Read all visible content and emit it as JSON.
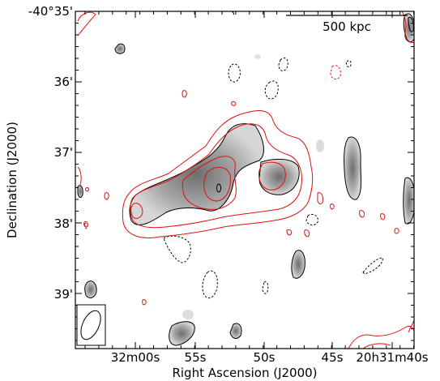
{
  "figure": {
    "xlabel": "Right Ascension (J2000)",
    "ylabel": "Declination (J2000)",
    "x_ticks": [
      "32m00s",
      "55s",
      "50s",
      "45s",
      "20h31m40s"
    ],
    "y_ticks": [
      "-40°35'",
      "36'",
      "37'",
      "38'",
      "39'"
    ],
    "scale_bar_label": "500 kpc",
    "colors": {
      "radio_contour": "#e01010",
      "image_contour": "#000000",
      "grayscale_blob": "#a8a8a8"
    }
  }
}
